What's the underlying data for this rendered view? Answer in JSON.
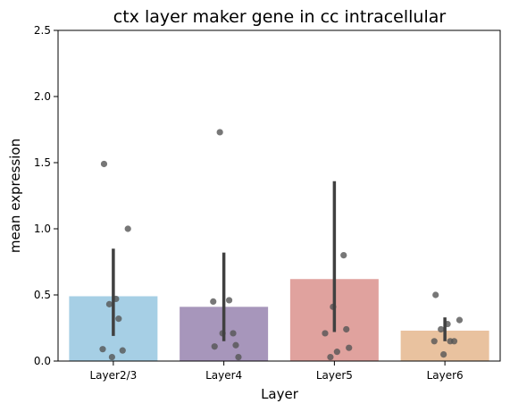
{
  "chart_data": {
    "type": "bar",
    "title": "ctx layer maker gene in cc intracellular",
    "xlabel": "Layer",
    "ylabel": "mean expression",
    "ylim": [
      0,
      2.5
    ],
    "yticks": [
      "0.0",
      "0.5",
      "1.0",
      "1.5",
      "2.0",
      "2.5"
    ],
    "grid": false,
    "categories": [
      "Layer2/3",
      "Layer4",
      "Layer5",
      "Layer6"
    ],
    "values": [
      0.49,
      0.41,
      0.62,
      0.23
    ],
    "error_bars": [
      [
        0.19,
        0.85
      ],
      [
        0.15,
        0.82
      ],
      [
        0.22,
        1.36
      ],
      [
        0.15,
        0.33
      ]
    ],
    "colors": [
      "#a6cfe5",
      "#a796bb",
      "#e0a29e",
      "#e9c29f"
    ],
    "points": [
      [
        1.49,
        1.0,
        0.47,
        0.43,
        0.32,
        0.09,
        0.08,
        0.03
      ],
      [
        1.73,
        0.46,
        0.45,
        0.21,
        0.21,
        0.12,
        0.11,
        0.03
      ],
      [
        0.8,
        0.41,
        0.24,
        0.21,
        0.1,
        0.07,
        0.03
      ],
      [
        0.5,
        0.31,
        0.28,
        0.24,
        0.15,
        0.15,
        0.15,
        0.05
      ]
    ],
    "point_color": "#555555",
    "errorbar_color": "#404040"
  }
}
